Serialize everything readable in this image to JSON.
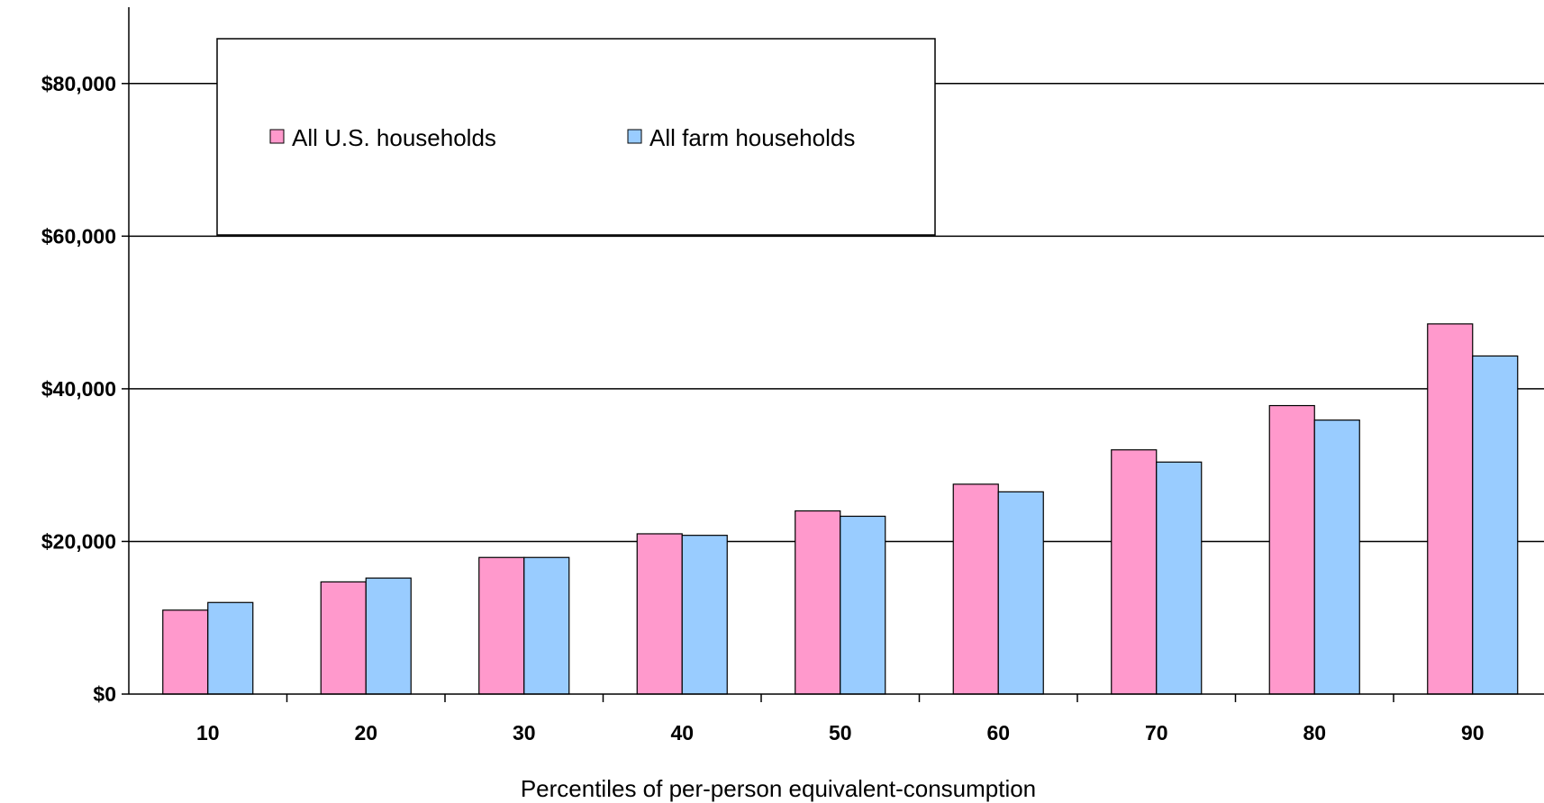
{
  "chart_data": {
    "type": "bar",
    "title": "",
    "xlabel": "Percentiles of per-person equivalent-consumption",
    "ylabel": "",
    "categories": [
      "10",
      "20",
      "30",
      "40",
      "50",
      "60",
      "70",
      "80",
      "90"
    ],
    "series": [
      {
        "name": "All U.S. households",
        "color": "#ff99cc",
        "values": [
          11000,
          14700,
          17900,
          21000,
          24000,
          27500,
          32000,
          37800,
          48500
        ]
      },
      {
        "name": "All farm households",
        "color": "#99ccff",
        "values": [
          12000,
          15200,
          17900,
          20800,
          23300,
          26500,
          30400,
          35900,
          44300
        ]
      }
    ],
    "ylim": [
      0,
      90000
    ],
    "yticks": [
      {
        "value": 0,
        "label": "$0"
      },
      {
        "value": 20000,
        "label": "$20,000"
      },
      {
        "value": 40000,
        "label": "$40,000"
      },
      {
        "value": 60000,
        "label": "$60,000"
      },
      {
        "value": 80000,
        "label": "$80,000"
      }
    ],
    "grid": true,
    "legend_position": "top-left"
  }
}
